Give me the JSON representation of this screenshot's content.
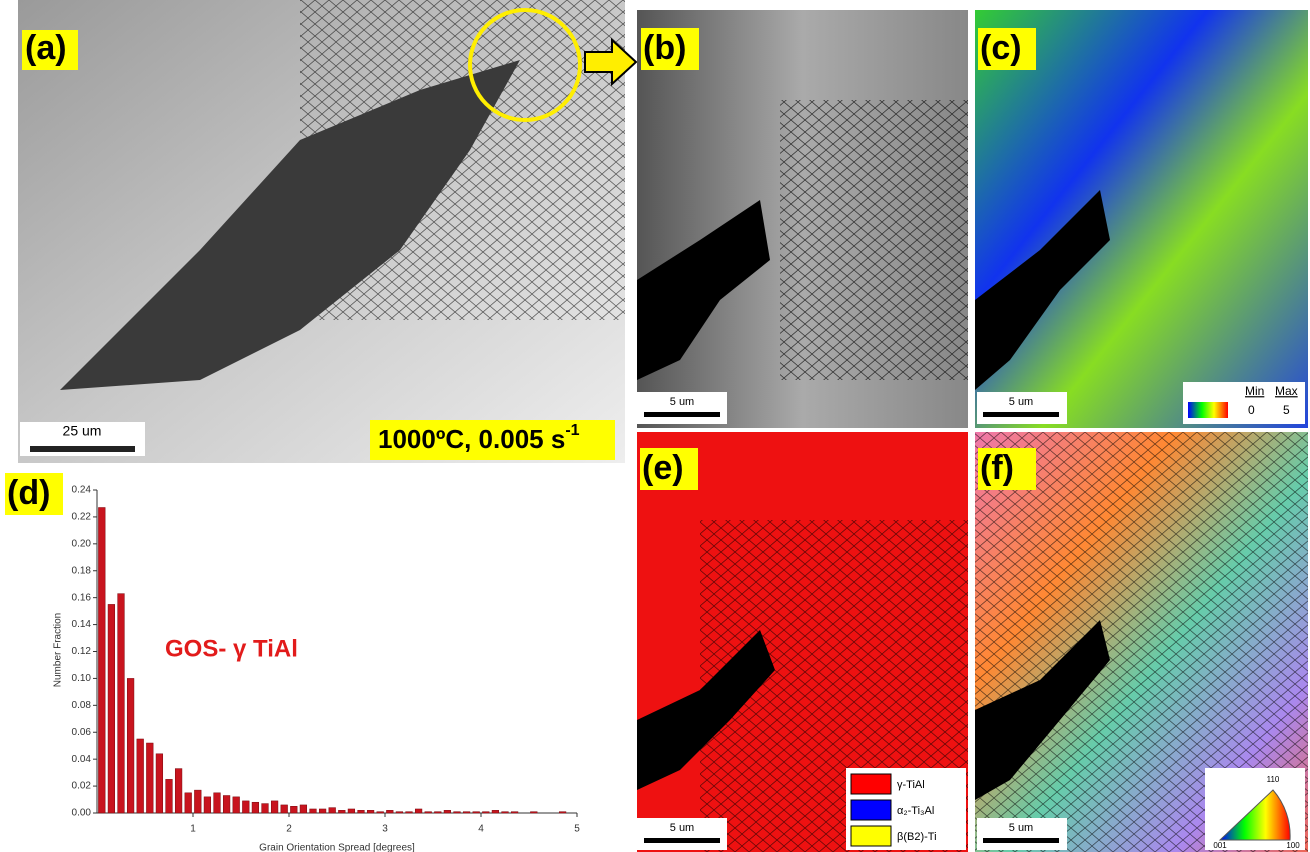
{
  "panels": {
    "a": {
      "label": "(a)",
      "scale": "25 um",
      "condition": {
        "text": "1000ºC, 0.005 s",
        "superscript": "-1"
      }
    },
    "b": {
      "label": "(b)",
      "scale": "5 um"
    },
    "c": {
      "label": "(c)",
      "scale": "5 um",
      "legend": {
        "min": "Min",
        "max": "Max",
        "low": "0",
        "high": "5"
      }
    },
    "d": {
      "label": "(d)"
    },
    "e": {
      "label": "(e)",
      "scale": "5 um",
      "legend": [
        {
          "name": "γ-TiAl",
          "color": "#ff0000"
        },
        {
          "name": "α₂-Ti₃Al",
          "color": "#0000ff"
        },
        {
          "name": "β(B2)-Ti",
          "color": "#ffff00"
        }
      ]
    },
    "f": {
      "label": "(f)",
      "scale": "5 um",
      "ipf": {
        "top": "110",
        "left": "001",
        "right": "100"
      }
    }
  },
  "chart_data": {
    "type": "histogram",
    "annotation": "GOS- γ TiAl",
    "xlabel": "Grain Orientation Spread [degrees]",
    "ylabel": "Number Fraction",
    "color": "#c8141e",
    "bins": [
      0,
      0.1,
      0.2,
      0.3,
      0.4,
      0.5,
      0.6,
      0.7,
      0.8,
      0.9,
      1,
      1.1,
      1.2,
      1.3,
      1.4,
      1.5,
      1.6,
      1.7,
      1.8,
      1.9,
      2,
      2.1,
      2.2,
      2.3,
      2.4,
      2.5,
      2.6,
      2.7,
      2.8,
      2.9,
      3,
      3.1,
      3.2,
      3.3,
      3.4,
      3.5,
      3.6,
      3.7,
      3.8,
      3.9,
      4,
      4.1,
      4.2,
      4.3,
      4.4,
      4.5,
      4.6,
      4.7,
      4.8,
      4.9,
      5
    ],
    "values": [
      0.227,
      0.155,
      0.163,
      0.1,
      0.055,
      0.052,
      0.044,
      0.025,
      0.033,
      0.015,
      0.017,
      0.012,
      0.015,
      0.013,
      0.012,
      0.009,
      0.008,
      0.007,
      0.009,
      0.006,
      0.005,
      0.006,
      0.003,
      0.003,
      0.004,
      0.002,
      0.003,
      0.002,
      0.002,
      0.001,
      0.002,
      0.001,
      0.001,
      0.003,
      0.001,
      0.001,
      0.002,
      0.001,
      0.001,
      0.001,
      0.001,
      0.002,
      0.001,
      0.001,
      0,
      0.001,
      0,
      0,
      0.001,
      0
    ],
    "xlim": [
      0,
      5
    ],
    "xticks": [
      1,
      2,
      3,
      4,
      5
    ],
    "ylim": [
      0,
      0.24
    ],
    "yticks": [
      {
        "value": 0,
        "label": "0.00"
      },
      {
        "value": 0.02,
        "label": "0.02"
      },
      {
        "value": 0.04,
        "label": "0.04"
      },
      {
        "value": 0.06,
        "label": "0.06"
      },
      {
        "value": 0.08,
        "label": "0.08"
      },
      {
        "value": 0.1,
        "label": "0.10"
      },
      {
        "value": 0.12,
        "label": "0.12"
      },
      {
        "value": 0.14,
        "label": "0.14"
      },
      {
        "value": 0.16,
        "label": "0.16"
      },
      {
        "value": 0.18,
        "label": "0.18"
      },
      {
        "value": 0.2,
        "label": "0.20"
      },
      {
        "value": 0.22,
        "label": "0.22"
      },
      {
        "value": 0.24,
        "label": "0.24"
      }
    ]
  }
}
